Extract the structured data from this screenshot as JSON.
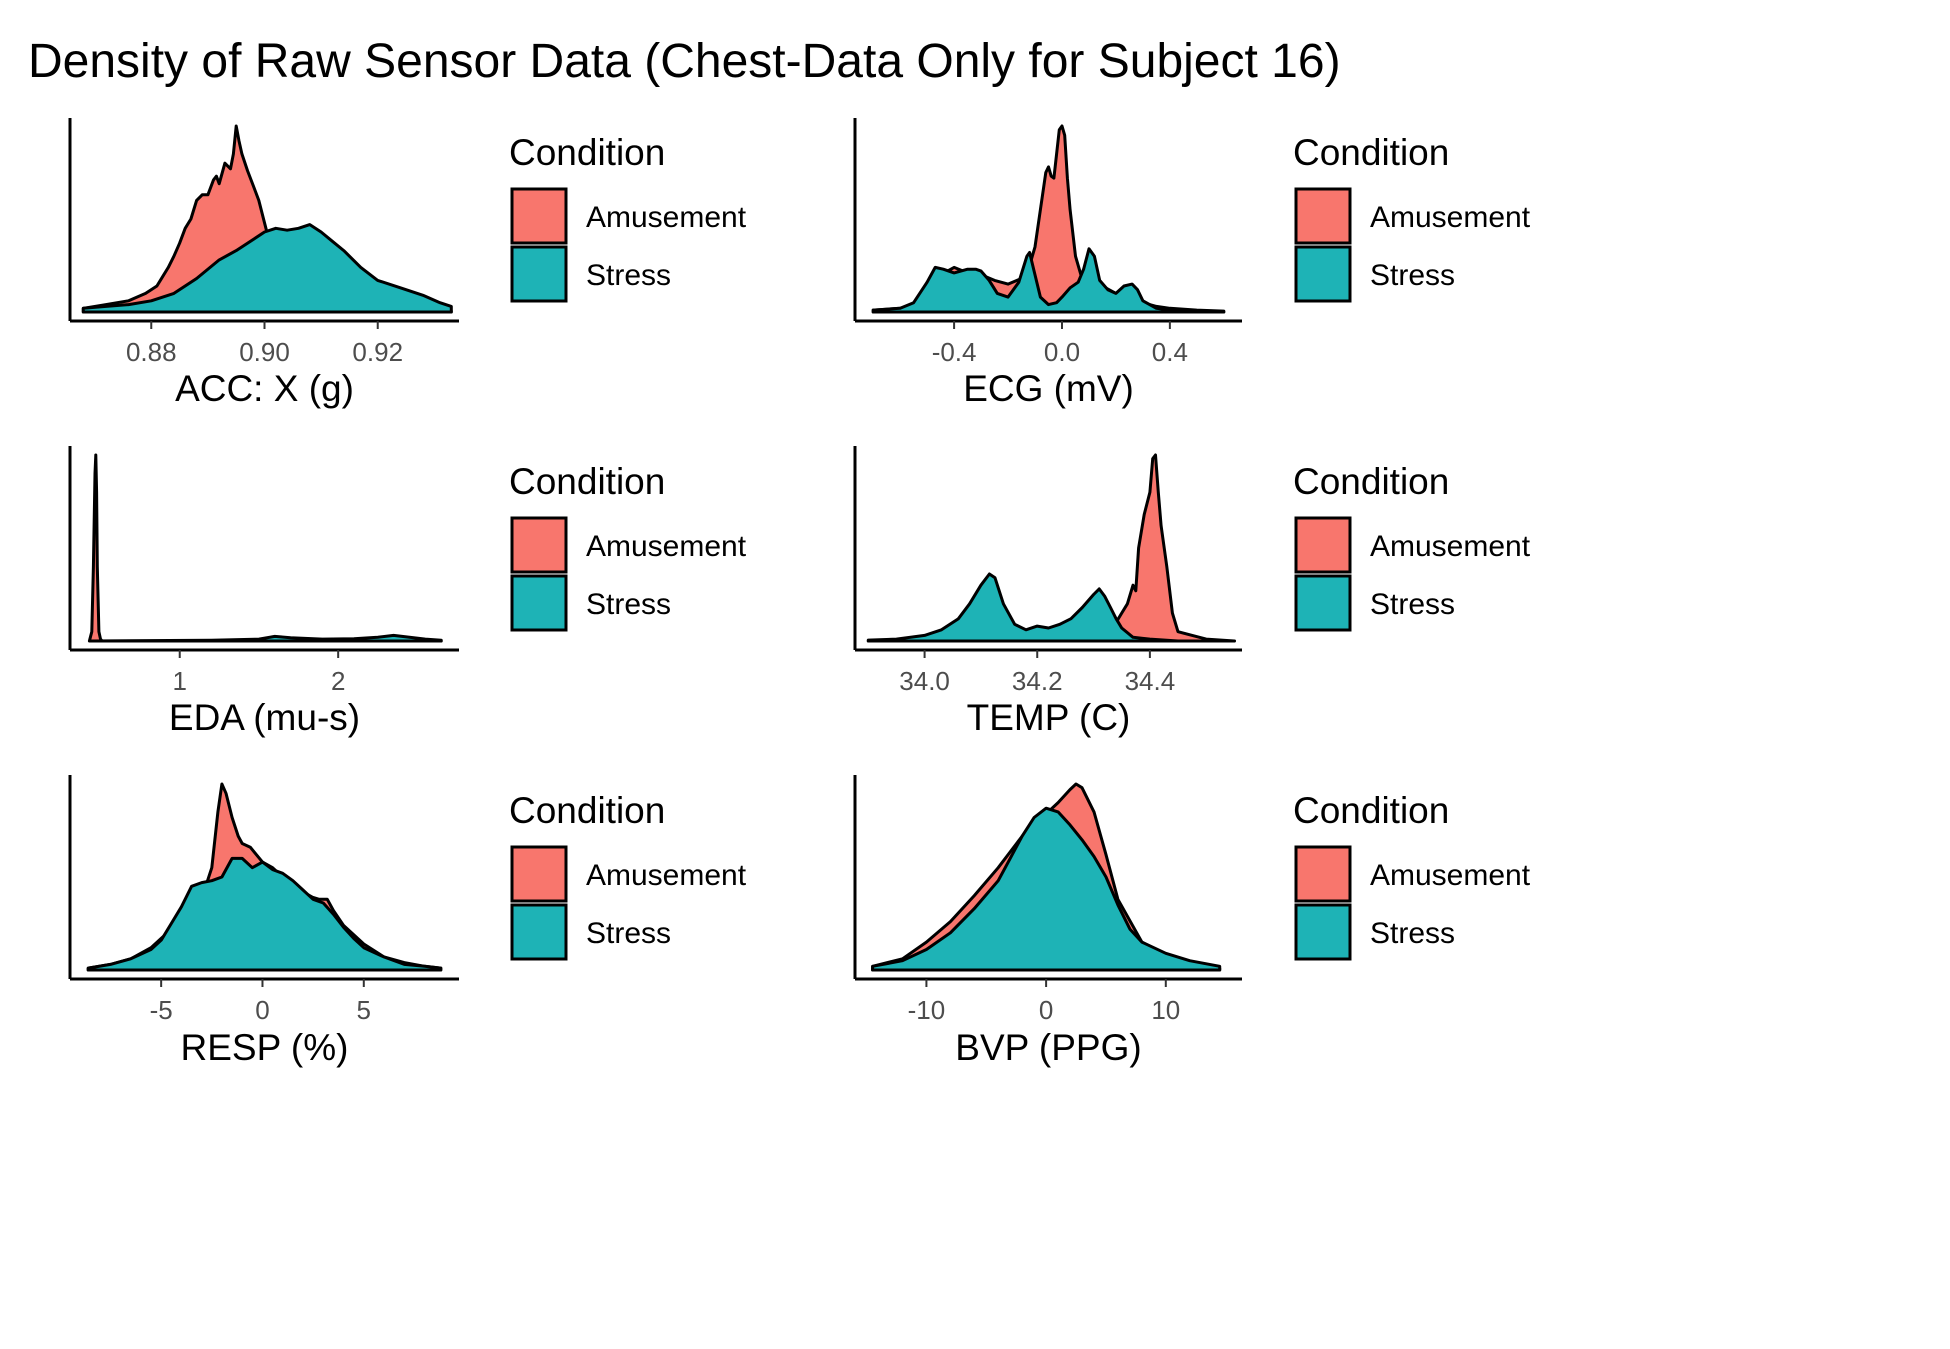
{
  "title": "Density of Raw Sensor Data (Chest-Data Only for Subject 16)",
  "colors": {
    "Amusement": "#F8766D",
    "Stress": "#1EB3B6",
    "outline": "#000000"
  },
  "legend": {
    "title": "Condition",
    "items": [
      "Amusement",
      "Stress"
    ]
  },
  "chart_data": [
    {
      "type": "area",
      "xlabel": "ACC: X (g)",
      "ylabel": "",
      "xlim": [
        0.866,
        0.934
      ],
      "xticks": [
        0.88,
        0.9,
        0.92
      ],
      "tick_labels": [
        "0.88",
        "0.90",
        "0.92"
      ],
      "series": [
        {
          "name": "Amusement",
          "x": [
            0.868,
            0.872,
            0.876,
            0.879,
            0.881,
            0.882,
            0.883,
            0.884,
            0.885,
            0.886,
            0.887,
            0.888,
            0.889,
            0.89,
            0.891,
            0.8915,
            0.892,
            0.893,
            0.894,
            0.8945,
            0.895,
            0.8955,
            0.896,
            0.897,
            0.898,
            0.899,
            0.9,
            0.901,
            0.903,
            0.906,
            0.91,
            0.915,
            0.92,
            0.925,
            0.93,
            0.933
          ],
          "y": [
            0.02,
            0.04,
            0.06,
            0.1,
            0.14,
            0.19,
            0.24,
            0.3,
            0.37,
            0.45,
            0.5,
            0.6,
            0.63,
            0.63,
            0.71,
            0.73,
            0.69,
            0.8,
            0.77,
            0.85,
            1.0,
            0.92,
            0.85,
            0.76,
            0.68,
            0.6,
            0.48,
            0.36,
            0.24,
            0.14,
            0.08,
            0.05,
            0.03,
            0.02,
            0.01,
            0.005
          ]
        },
        {
          "name": "Stress",
          "x": [
            0.868,
            0.872,
            0.876,
            0.88,
            0.884,
            0.888,
            0.892,
            0.895,
            0.898,
            0.9,
            0.902,
            0.904,
            0.906,
            0.908,
            0.91,
            0.912,
            0.914,
            0.917,
            0.92,
            0.924,
            0.928,
            0.931,
            0.933
          ],
          "y": [
            0.02,
            0.03,
            0.04,
            0.06,
            0.1,
            0.18,
            0.28,
            0.33,
            0.39,
            0.43,
            0.45,
            0.44,
            0.45,
            0.47,
            0.43,
            0.38,
            0.33,
            0.24,
            0.17,
            0.13,
            0.09,
            0.05,
            0.03
          ]
        }
      ]
    },
    {
      "type": "area",
      "xlabel": "ECG (mV)",
      "ylabel": "",
      "xlim": [
        -0.76,
        0.66
      ],
      "xticks": [
        -0.4,
        0.0,
        0.4
      ],
      "tick_labels": [
        "-0.4",
        "0.0",
        "0.4"
      ],
      "series": [
        {
          "name": "Amusement",
          "x": [
            -0.7,
            -0.6,
            -0.55,
            -0.5,
            -0.45,
            -0.4,
            -0.35,
            -0.3,
            -0.25,
            -0.2,
            -0.15,
            -0.12,
            -0.1,
            -0.08,
            -0.06,
            -0.05,
            -0.04,
            -0.03,
            -0.02,
            -0.01,
            0.0,
            0.01,
            0.02,
            0.03,
            0.05,
            0.07,
            0.1,
            0.15,
            0.2,
            0.25,
            0.3,
            0.35,
            0.4,
            0.5,
            0.6
          ],
          "y": [
            0.01,
            0.02,
            0.04,
            0.1,
            0.2,
            0.24,
            0.21,
            0.2,
            0.17,
            0.15,
            0.18,
            0.25,
            0.35,
            0.55,
            0.75,
            0.78,
            0.73,
            0.72,
            0.85,
            0.98,
            1.0,
            0.95,
            0.72,
            0.55,
            0.3,
            0.2,
            0.18,
            0.14,
            0.1,
            0.08,
            0.05,
            0.03,
            0.02,
            0.01,
            0.005
          ]
        },
        {
          "name": "Stress",
          "x": [
            -0.7,
            -0.6,
            -0.55,
            -0.5,
            -0.47,
            -0.44,
            -0.4,
            -0.35,
            -0.32,
            -0.3,
            -0.27,
            -0.24,
            -0.2,
            -0.16,
            -0.13,
            -0.12,
            -0.1,
            -0.08,
            -0.05,
            -0.02,
            0.0,
            0.03,
            0.06,
            0.08,
            0.1,
            0.12,
            0.14,
            0.17,
            0.2,
            0.23,
            0.26,
            0.28,
            0.3,
            0.35,
            0.4,
            0.5,
            0.6
          ],
          "y": [
            0.01,
            0.02,
            0.05,
            0.16,
            0.24,
            0.23,
            0.21,
            0.23,
            0.23,
            0.22,
            0.17,
            0.1,
            0.08,
            0.16,
            0.3,
            0.32,
            0.2,
            0.08,
            0.04,
            0.05,
            0.08,
            0.13,
            0.16,
            0.23,
            0.34,
            0.3,
            0.17,
            0.12,
            0.1,
            0.14,
            0.15,
            0.12,
            0.06,
            0.02,
            0.01,
            0.005,
            0.0
          ]
        }
      ]
    },
    {
      "type": "area",
      "xlabel": "EDA (mu-s)",
      "ylabel": "",
      "xlim": [
        0.32,
        2.75
      ],
      "xticks": [
        1,
        2
      ],
      "tick_labels": [
        "1",
        "2"
      ],
      "series": [
        {
          "name": "Amusement",
          "x": [
            0.43,
            0.445,
            0.455,
            0.465,
            0.47,
            0.475,
            0.48,
            0.49,
            0.5,
            0.51,
            0.6,
            1.0,
            1.5,
            2.0,
            2.5,
            2.65
          ],
          "y": [
            0.0,
            0.05,
            0.4,
            0.9,
            1.0,
            0.8,
            0.4,
            0.05,
            0.01,
            0.0,
            0.0,
            0.0,
            0.0,
            0.0,
            0.0,
            0.0
          ]
        },
        {
          "name": "Stress",
          "x": [
            0.44,
            0.8,
            1.2,
            1.5,
            1.6,
            1.7,
            1.9,
            2.1,
            2.25,
            2.35,
            2.45,
            2.55,
            2.65
          ],
          "y": [
            0.0,
            0.002,
            0.004,
            0.01,
            0.025,
            0.018,
            0.01,
            0.012,
            0.02,
            0.03,
            0.02,
            0.01,
            0.004
          ]
        }
      ]
    },
    {
      "type": "area",
      "xlabel": "TEMP (C)",
      "ylabel": "",
      "xlim": [
        33.88,
        34.56
      ],
      "xticks": [
        34.0,
        34.2,
        34.4
      ],
      "tick_labels": [
        "34.0",
        "34.2",
        "34.4"
      ],
      "series": [
        {
          "name": "Amusement",
          "x": [
            33.9,
            34.0,
            34.1,
            34.2,
            34.25,
            34.3,
            34.33,
            34.35,
            34.36,
            34.37,
            34.375,
            34.38,
            34.39,
            34.4,
            34.405,
            34.41,
            34.415,
            34.42,
            34.43,
            34.44,
            34.45,
            34.5,
            34.55
          ],
          "y": [
            0.0,
            0.0,
            0.0,
            0.0,
            0.0,
            0.01,
            0.05,
            0.15,
            0.2,
            0.3,
            0.27,
            0.5,
            0.68,
            0.8,
            0.98,
            1.0,
            0.8,
            0.62,
            0.4,
            0.15,
            0.05,
            0.01,
            0.0
          ]
        },
        {
          "name": "Stress",
          "x": [
            33.9,
            33.95,
            34.0,
            34.03,
            34.06,
            34.08,
            34.1,
            34.115,
            34.125,
            34.14,
            34.16,
            34.18,
            34.2,
            34.22,
            34.24,
            34.26,
            34.28,
            34.3,
            34.31,
            34.32,
            34.33,
            34.34,
            34.35,
            34.37,
            34.4,
            34.45,
            34.5,
            34.55
          ],
          "y": [
            0.005,
            0.01,
            0.03,
            0.06,
            0.12,
            0.2,
            0.3,
            0.36,
            0.34,
            0.2,
            0.09,
            0.06,
            0.08,
            0.07,
            0.09,
            0.12,
            0.18,
            0.25,
            0.28,
            0.24,
            0.18,
            0.12,
            0.07,
            0.02,
            0.01,
            0.0,
            0.0,
            0.0
          ]
        }
      ]
    },
    {
      "type": "area",
      "xlabel": "RESP (%)",
      "ylabel": "",
      "xlim": [
        -9.4,
        9.6
      ],
      "xticks": [
        -5,
        0,
        5
      ],
      "tick_labels": [
        "-5",
        "0",
        "5"
      ],
      "series": [
        {
          "name": "Amusement",
          "x": [
            -8.6,
            -7.5,
            -6.5,
            -5.5,
            -4.5,
            -3.5,
            -2.8,
            -2.5,
            -2.2,
            -2.0,
            -1.8,
            -1.5,
            -1.2,
            -1.0,
            -0.6,
            -0.3,
            0.0,
            0.5,
            1.0,
            1.5,
            2.0,
            2.5,
            2.8,
            3.2,
            3.5,
            4.0,
            5.0,
            6.0,
            7.0,
            8.0,
            8.8
          ],
          "y": [
            0.01,
            0.03,
            0.06,
            0.12,
            0.22,
            0.36,
            0.45,
            0.55,
            0.85,
            1.0,
            0.95,
            0.82,
            0.72,
            0.68,
            0.66,
            0.62,
            0.58,
            0.55,
            0.5,
            0.46,
            0.42,
            0.39,
            0.38,
            0.38,
            0.32,
            0.24,
            0.14,
            0.07,
            0.04,
            0.02,
            0.01
          ]
        },
        {
          "name": "Stress",
          "x": [
            -8.6,
            -7.5,
            -6.5,
            -5.5,
            -5.0,
            -4.5,
            -4.0,
            -3.5,
            -3.0,
            -2.5,
            -2.0,
            -1.5,
            -1.0,
            -0.5,
            0.0,
            0.5,
            1.0,
            1.5,
            2.0,
            2.5,
            3.0,
            3.5,
            4.0,
            4.5,
            5.0,
            6.0,
            7.0,
            8.0,
            8.8
          ],
          "y": [
            0.01,
            0.03,
            0.06,
            0.11,
            0.16,
            0.25,
            0.34,
            0.45,
            0.47,
            0.48,
            0.5,
            0.6,
            0.6,
            0.55,
            0.58,
            0.54,
            0.52,
            0.48,
            0.43,
            0.38,
            0.36,
            0.3,
            0.23,
            0.17,
            0.12,
            0.07,
            0.03,
            0.02,
            0.01
          ]
        }
      ]
    },
    {
      "type": "area",
      "xlabel": "BVP (PPG)",
      "ylabel": "",
      "xlim": [
        -15.8,
        16.2
      ],
      "xticks": [
        -10,
        0,
        10
      ],
      "tick_labels": [
        "-10",
        "0",
        "10"
      ],
      "series": [
        {
          "name": "Amusement",
          "x": [
            -14.5,
            -12,
            -10,
            -8,
            -6,
            -4,
            -2,
            0,
            1,
            2,
            2.5,
            3,
            4,
            5,
            6,
            8,
            10,
            12,
            14.5
          ],
          "y": [
            0.02,
            0.06,
            0.15,
            0.26,
            0.4,
            0.55,
            0.72,
            0.84,
            0.9,
            0.97,
            1.0,
            0.98,
            0.85,
            0.62,
            0.38,
            0.15,
            0.08,
            0.04,
            0.01
          ]
        },
        {
          "name": "Stress",
          "x": [
            -14.5,
            -12,
            -10,
            -8,
            -6,
            -4,
            -3,
            -2,
            -1,
            0,
            1,
            2,
            3,
            4,
            5,
            6,
            7,
            8,
            10,
            12,
            14.5
          ],
          "y": [
            0.02,
            0.05,
            0.11,
            0.2,
            0.33,
            0.48,
            0.6,
            0.72,
            0.82,
            0.87,
            0.85,
            0.78,
            0.7,
            0.61,
            0.5,
            0.35,
            0.22,
            0.15,
            0.09,
            0.05,
            0.02
          ]
        }
      ]
    }
  ]
}
